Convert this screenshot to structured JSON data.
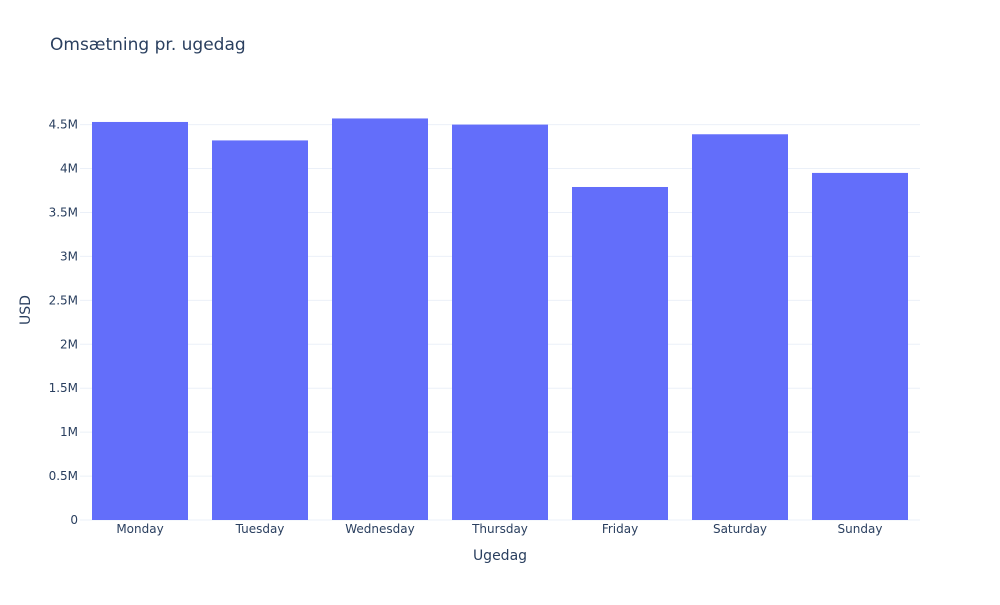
{
  "chart_data": {
    "type": "bar",
    "title": "Omsætning pr. ugedag",
    "xlabel": "Ugedag",
    "ylabel": "USD",
    "categories": [
      "Monday",
      "Tuesday",
      "Wednesday",
      "Thursday",
      "Friday",
      "Saturday",
      "Sunday"
    ],
    "values": [
      4530000,
      4320000,
      4570000,
      4500000,
      3790000,
      4390000,
      3950000
    ],
    "ylim": [
      0,
      4780000
    ],
    "yticks": [
      0,
      500000,
      1000000,
      1500000,
      2000000,
      2500000,
      3000000,
      3500000,
      4000000,
      4500000
    ],
    "ytick_labels": [
      "0",
      "0.5M",
      "1M",
      "1.5M",
      "2M",
      "2.5M",
      "3M",
      "3.5M",
      "4M",
      "4.5M"
    ],
    "grid": true,
    "legend": "none",
    "bar_color": "#636efa"
  }
}
